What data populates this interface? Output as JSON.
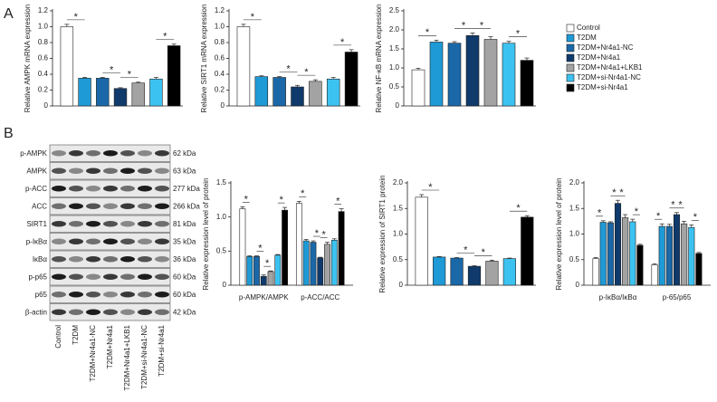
{
  "panel_labels": [
    "A",
    "B"
  ],
  "legend": {
    "entries": [
      {
        "name": "Control",
        "color": "#ffffff"
      },
      {
        "name": "T2DM",
        "color": "#1e9ad6"
      },
      {
        "name": "T2DM+Nr4a1-NC",
        "color": "#1a68a8"
      },
      {
        "name": "T2DM+Nr4a1",
        "color": "#0f3a6b"
      },
      {
        "name": "T2DM+Nr4a1+LKB1",
        "color": "#a3a3a3"
      },
      {
        "name": "T2DM+si-Nr4a1-NC",
        "color": "#3cc2f0"
      },
      {
        "name": "T2DM+si-Nr4a1",
        "color": "#000000"
      }
    ]
  },
  "blot": {
    "rows": [
      {
        "protein": "p-AMPK",
        "size": "62 kDa"
      },
      {
        "protein": "AMPK",
        "size": "63 kDa"
      },
      {
        "protein": "p-ACC",
        "size": "277 kDa"
      },
      {
        "protein": "ACC",
        "size": "266 kDa"
      },
      {
        "protein": "SIRT1",
        "size": "81 kDa"
      },
      {
        "protein": "p-IκBα",
        "size": "35 kDa"
      },
      {
        "protein": "IκBα",
        "size": "36 kDa"
      },
      {
        "protein": "p-p65",
        "size": "60 kDa"
      },
      {
        "protein": "p65",
        "size": "60 kDa"
      },
      {
        "protein": "β-actin",
        "size": "42 kDa"
      }
    ],
    "lanes": [
      "Control",
      "T2DM",
      "T2DM+Nr4a1-NC",
      "T2DM+Nr4a1",
      "T2DM+Nr4a1+LKB1",
      "T2DM+si-Nr4a1-NC",
      "T2DM+si-Nr4a1"
    ]
  },
  "chart_data": [
    {
      "type": "bar",
      "y_label": "Relative AMPK mRNA expression",
      "ylim": [
        0,
        1.2
      ],
      "yticks": [
        0,
        0.2,
        0.4,
        0.6,
        0.8,
        {
          "value": 1,
          "label": "1.0"
        },
        1.2
      ],
      "values": [
        1.0,
        0.35,
        0.35,
        0.22,
        0.29,
        0.34,
        0.76
      ],
      "errors": [
        0.03,
        0.01,
        0.01,
        0.01,
        0.01,
        0.02,
        0.02
      ],
      "annotations": [
        {
          "text": "*",
          "bars": [
            0,
            1
          ]
        },
        {
          "text": "*",
          "bars": [
            2,
            3
          ]
        },
        {
          "text": "*",
          "bars": [
            3,
            4
          ]
        },
        {
          "text": "*",
          "bars": [
            5,
            6
          ]
        }
      ]
    },
    {
      "type": "bar",
      "y_label": "Relative SIRT1 mRNA expression",
      "ylim": [
        0,
        1.2
      ],
      "yticks": [
        0,
        0.2,
        0.4,
        0.6,
        0.8,
        {
          "value": 1,
          "label": "1.0"
        },
        1.2
      ],
      "values": [
        1.0,
        0.37,
        0.36,
        0.24,
        0.31,
        0.34,
        0.68
      ],
      "errors": [
        0.03,
        0.01,
        0.01,
        0.02,
        0.02,
        0.02,
        0.03
      ],
      "annotations": [
        {
          "text": "*",
          "bars": [
            0,
            1
          ]
        },
        {
          "text": "*",
          "bars": [
            2,
            3
          ]
        },
        {
          "text": "*",
          "bars": [
            3,
            4
          ]
        },
        {
          "text": "*",
          "bars": [
            5,
            6
          ]
        }
      ]
    },
    {
      "type": "bar",
      "y_label": "Relative NF-κB mRNA expression",
      "ylim": [
        0,
        2.5
      ],
      "yticks": [
        0,
        0.5,
        {
          "value": 1,
          "label": "1.0"
        },
        1.5,
        {
          "value": 2,
          "label": "2.0"
        },
        2.5
      ],
      "values": [
        0.95,
        1.68,
        1.65,
        1.85,
        1.75,
        1.65,
        1.2
      ],
      "errors": [
        0.04,
        0.05,
        0.04,
        0.07,
        0.07,
        0.05,
        0.06
      ],
      "annotations": [
        {
          "text": "*",
          "bars": [
            0,
            1
          ]
        },
        {
          "text": "*",
          "bars": [
            2,
            3
          ]
        },
        {
          "text": "*",
          "bars": [
            3,
            4
          ]
        },
        {
          "text": "*",
          "bars": [
            5,
            6
          ]
        }
      ]
    },
    {
      "type": "grouped-bar",
      "y_label": "Relative expression level of protein",
      "ylim": [
        0,
        1.5
      ],
      "yticks": [
        0,
        0.5,
        {
          "value": 1,
          "label": "1.0"
        },
        1.5
      ],
      "categories": [
        "p-AMPK/AMPK",
        "p-ACC/ACC"
      ],
      "series": [
        {
          "values": [
            1.12,
            1.2
          ],
          "errors": [
            0.03,
            0.03
          ]
        },
        {
          "values": [
            0.42,
            0.65
          ],
          "errors": [
            0.01,
            0.02
          ]
        },
        {
          "values": [
            0.42,
            0.63
          ],
          "errors": [
            0.01,
            0.02
          ]
        },
        {
          "values": [
            0.13,
            0.4
          ],
          "errors": [
            0.02,
            0.01
          ]
        },
        {
          "values": [
            0.2,
            0.6
          ],
          "errors": [
            0.01,
            0.03
          ]
        },
        {
          "values": [
            0.44,
            0.66
          ],
          "errors": [
            0.01,
            0.02
          ]
        },
        {
          "values": [
            1.1,
            1.08
          ],
          "errors": [
            0.04,
            0.04
          ]
        }
      ],
      "annotations": [
        {
          "text": "*",
          "category": 0,
          "bars": [
            0,
            1
          ]
        },
        {
          "text": "*",
          "category": 0,
          "bars": [
            2,
            3
          ]
        },
        {
          "text": "*",
          "category": 0,
          "bars": [
            3,
            4
          ]
        },
        {
          "text": "*",
          "category": 0,
          "bars": [
            5,
            6
          ]
        },
        {
          "text": "*",
          "category": 1,
          "bars": [
            0,
            1
          ]
        },
        {
          "text": "*",
          "category": 1,
          "bars": [
            2,
            3
          ]
        },
        {
          "text": "*",
          "category": 1,
          "bars": [
            3,
            4
          ]
        },
        {
          "text": "*",
          "category": 1,
          "bars": [
            5,
            6
          ]
        }
      ]
    },
    {
      "type": "bar",
      "y_label": "Relative expression of SIRT1 protein",
      "ylim": [
        0,
        2
      ],
      "yticks": [
        0,
        0.5,
        {
          "value": 1,
          "label": "1.0"
        },
        1.5,
        {
          "value": 2,
          "label": "2.0"
        }
      ],
      "values": [
        1.72,
        0.55,
        0.53,
        0.37,
        0.47,
        0.52,
        1.33
      ],
      "errors": [
        0.05,
        0.01,
        0.01,
        0.01,
        0.02,
        0.01,
        0.03
      ],
      "annotations": [
        {
          "text": "*",
          "bars": [
            0,
            1
          ]
        },
        {
          "text": "*",
          "bars": [
            2,
            3
          ]
        },
        {
          "text": "*",
          "bars": [
            3,
            4
          ]
        },
        {
          "text": "*",
          "bars": [
            5,
            6
          ]
        }
      ]
    },
    {
      "type": "grouped-bar",
      "y_label": "Relative expression level of protein",
      "ylim": [
        0,
        2
      ],
      "yticks": [
        0,
        0.5,
        {
          "value": 1,
          "label": "1.0"
        },
        1.5,
        {
          "value": 2,
          "label": "2.0"
        }
      ],
      "categories": [
        "p-IκBα/IκBα",
        "p-65/p65"
      ],
      "series": [
        {
          "values": [
            0.52,
            0.4
          ],
          "errors": [
            0.02,
            0.02
          ]
        },
        {
          "values": [
            1.23,
            1.15
          ],
          "errors": [
            0.03,
            0.05
          ]
        },
        {
          "values": [
            1.22,
            1.15
          ],
          "errors": [
            0.02,
            0.04
          ]
        },
        {
          "values": [
            1.6,
            1.38
          ],
          "errors": [
            0.06,
            0.04
          ]
        },
        {
          "values": [
            1.32,
            1.2
          ],
          "errors": [
            0.06,
            0.05
          ]
        },
        {
          "values": [
            1.24,
            1.13
          ],
          "errors": [
            0.05,
            0.05
          ]
        },
        {
          "values": [
            0.78,
            0.62
          ],
          "errors": [
            0.02,
            0.02
          ]
        }
      ],
      "annotations": [
        {
          "text": "*",
          "category": 0,
          "bars": [
            0,
            1
          ]
        },
        {
          "text": "*",
          "category": 0,
          "bars": [
            2,
            3
          ]
        },
        {
          "text": "*",
          "category": 0,
          "bars": [
            3,
            4
          ]
        },
        {
          "text": "*",
          "category": 0,
          "bars": [
            5,
            6
          ]
        },
        {
          "text": "*",
          "category": 1,
          "bars": [
            0,
            1
          ]
        },
        {
          "text": "*",
          "category": 1,
          "bars": [
            2,
            3
          ]
        },
        {
          "text": "*",
          "category": 1,
          "bars": [
            3,
            4
          ]
        },
        {
          "text": "*",
          "category": 1,
          "bars": [
            5,
            6
          ]
        }
      ]
    }
  ]
}
